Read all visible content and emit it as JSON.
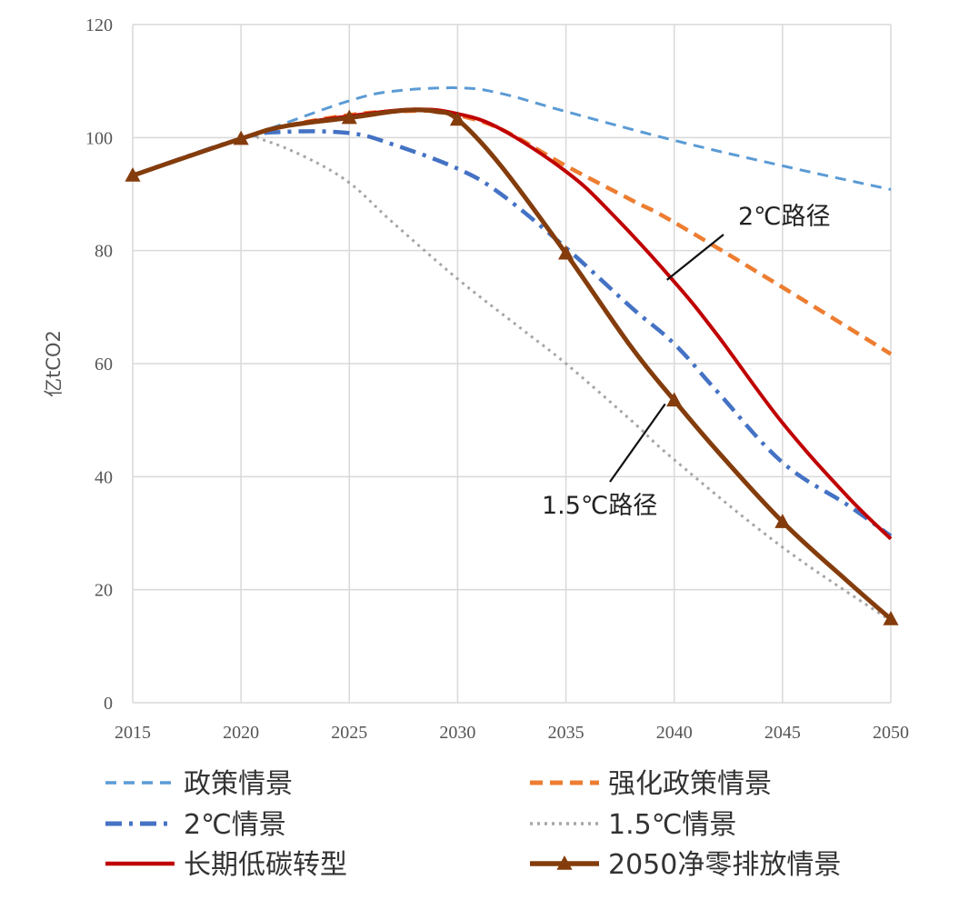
{
  "chart_data": {
    "type": "line",
    "title": "",
    "xlabel": "",
    "ylabel": "亿tCO2",
    "xlim": [
      2015,
      2050
    ],
    "ylim": [
      0,
      120
    ],
    "x_ticks": [
      "2015",
      "2020",
      "2025",
      "2030",
      "2035",
      "2040",
      "2045",
      "2050"
    ],
    "y_ticks": [
      "0",
      "20",
      "40",
      "60",
      "80",
      "100",
      "120"
    ],
    "grid": true,
    "legend_position": "bottom",
    "series": [
      {
        "name": "政策情景",
        "color": "#5b9bd5",
        "dash": "dashed-thin",
        "x": [
          2015,
          2020,
          2022,
          2025,
          2027,
          2030,
          2032,
          2035,
          2040,
          2045,
          2050
        ],
        "y": [
          93.3,
          99.8,
          102.5,
          106.5,
          108.2,
          108.8,
          107.8,
          104.6,
          99.5,
          95.0,
          90.8
        ]
      },
      {
        "name": "强化政策情景",
        "color": "#ed7d31",
        "dash": "dashed",
        "x": [
          2015,
          2020,
          2022,
          2025,
          2027,
          2029,
          2030,
          2032,
          2035,
          2038,
          2040,
          2045,
          2050
        ],
        "y": [
          93.3,
          99.8,
          102.0,
          104.0,
          104.6,
          104.7,
          104.0,
          101.5,
          95.0,
          89.0,
          85.0,
          73.5,
          61.7
        ]
      },
      {
        "name": "2℃情景",
        "color": "#4472c4",
        "dash": "dashdot",
        "x": [
          2015,
          2020,
          2022,
          2025,
          2027,
          2030,
          2032,
          2035,
          2038,
          2040,
          2042,
          2045,
          2048,
          2050
        ],
        "y": [
          93.3,
          99.8,
          101.0,
          100.8,
          98.8,
          94.5,
          90.0,
          80.5,
          70.0,
          63.5,
          55.0,
          42.5,
          35.0,
          29.5
        ]
      },
      {
        "name": "1.5℃情景",
        "color": "#a6a6a6",
        "dash": "dotted",
        "x": [
          2015,
          2020,
          2021,
          2023,
          2025,
          2027,
          2030,
          2033,
          2035,
          2038,
          2040,
          2045,
          2050
        ],
        "y": [
          93.3,
          99.8,
          99.6,
          96.5,
          92.0,
          85.0,
          75.0,
          66.0,
          60.0,
          50.0,
          43.0,
          27.5,
          14.5
        ]
      },
      {
        "name": "长期低碳转型",
        "color": "#c00000",
        "dash": "solid",
        "x": [
          2015,
          2020,
          2022,
          2025,
          2028,
          2030,
          2032,
          2035,
          2037,
          2040,
          2042,
          2045,
          2048,
          2050
        ],
        "y": [
          93.3,
          99.8,
          102.0,
          103.8,
          105.0,
          104.2,
          101.5,
          94.0,
          87.0,
          74.5,
          65.0,
          49.5,
          36.5,
          29.0
        ]
      },
      {
        "name": "2050净零排放情景",
        "color": "#843c0c",
        "dash": "solid-marker",
        "x": [
          2015,
          2020,
          2022,
          2025,
          2027,
          2028,
          2029,
          2030,
          2032,
          2035,
          2038,
          2040,
          2042,
          2045,
          2048,
          2050
        ],
        "y": [
          93.3,
          99.8,
          102.0,
          103.5,
          104.6,
          104.9,
          104.6,
          103.2,
          95.0,
          79.5,
          63.0,
          53.5,
          44.5,
          32.0,
          21.5,
          14.8
        ],
        "marker_x": [
          2015,
          2020,
          2025,
          2030,
          2035,
          2040,
          2045,
          2050
        ]
      }
    ],
    "annotations": [
      {
        "text": "2℃路径",
        "points_to_series": "长期低碳转型",
        "x": 2040,
        "y": 74.5
      },
      {
        "text": "1.5℃路径",
        "points_to_series": "2050净零排放情景",
        "x": 2040,
        "y": 53.5
      }
    ]
  }
}
